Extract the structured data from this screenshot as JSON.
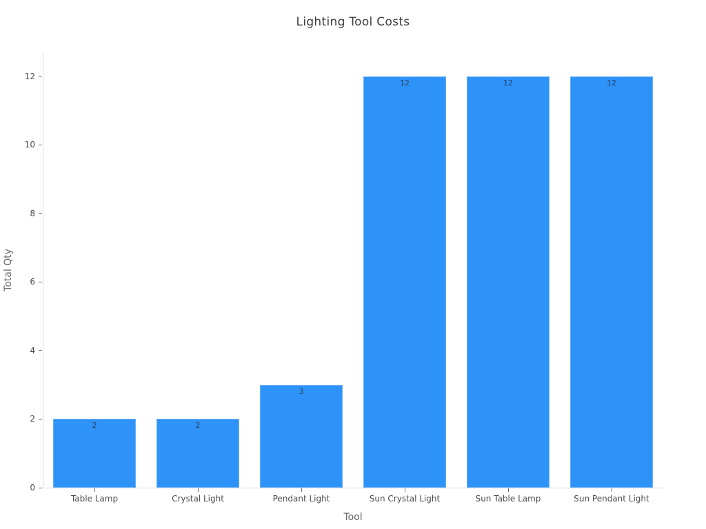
{
  "chart_data": {
    "type": "bar",
    "title": "Lighting Tool Costs",
    "xlabel": "Tool",
    "ylabel": "Total Qty",
    "categories": [
      "Table Lamp",
      "Crystal Light",
      "Pendant Light",
      "Sun Crystal Light",
      "Sun Table Lamp",
      "Sun Pendant Light"
    ],
    "values": [
      2,
      2,
      3,
      12,
      12,
      12
    ],
    "bar_labels": [
      "2",
      "2",
      "3",
      "12",
      "12",
      "12"
    ],
    "yticks": [
      0,
      2,
      4,
      6,
      8,
      10,
      12
    ],
    "ylim": [
      0,
      12.72
    ],
    "grid": false,
    "legend_position": "none",
    "colors": {
      "bar_fill": "#2e93f8",
      "bar_border": "#66aef9",
      "bar_label_text": "#2a3f5f",
      "title_text": "#3d3d3d",
      "tick_label_text": "#4a4a4a",
      "axis_title_text": "#666666",
      "axis_line": "#d9d9d9",
      "tick_mark": "#666666",
      "background": "#ffffff"
    }
  }
}
